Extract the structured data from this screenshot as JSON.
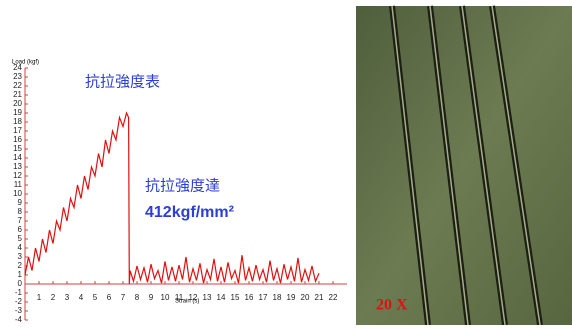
{
  "chart_data": {
    "type": "line",
    "x_label": "Strain (s)",
    "y_label": "Load (kgf)",
    "annotations": [
      "抗拉強度表",
      "抗拉強度達",
      "412kgf/mm²"
    ],
    "xlim": [
      0,
      23
    ],
    "ylim": [
      -4,
      24
    ],
    "xticks": [
      1,
      2,
      3,
      4,
      5,
      6,
      7,
      8,
      9,
      10,
      11,
      12,
      13,
      14,
      15,
      16,
      17,
      18,
      19,
      20,
      21,
      22
    ],
    "yticks": [
      -4,
      -3,
      -2,
      -1,
      0,
      1,
      2,
      3,
      4,
      5,
      6,
      7,
      8,
      9,
      10,
      11,
      12,
      13,
      14,
      15,
      16,
      17,
      18,
      19,
      20,
      21,
      22,
      23,
      24
    ],
    "series": [
      {
        "color": "#e01010",
        "x": [
          0,
          0.25,
          0.5,
          0.75,
          1,
          1.25,
          1.5,
          1.75,
          2,
          2.25,
          2.5,
          2.75,
          3,
          3.25,
          3.5,
          3.75,
          4,
          4.25,
          4.5,
          4.75,
          5,
          5.25,
          5.5,
          5.75,
          6,
          6.25,
          6.5,
          6.75,
          7,
          7.25,
          7.4,
          7.45,
          7.5,
          7.75,
          8,
          8.25,
          8.5,
          8.75,
          9,
          9.25,
          9.5,
          9.75,
          10,
          10.25,
          10.5,
          10.75,
          11,
          11.25,
          11.5,
          11.75,
          12,
          12.25,
          12.5,
          12.75,
          13,
          13.25,
          13.5,
          13.75,
          14,
          14.25,
          14.5,
          14.75,
          15,
          15.25,
          15.5,
          15.75,
          16,
          16.25,
          16.5,
          16.75,
          17,
          17.25,
          17.5,
          17.75,
          18,
          18.25,
          18.5,
          18.75,
          19,
          19.25,
          19.5,
          19.75,
          20,
          20.25,
          20.5,
          20.75,
          21
        ],
        "values": [
          1,
          3,
          1.5,
          4,
          2.5,
          5,
          3.5,
          6,
          4.5,
          7,
          6,
          8.5,
          7,
          9.5,
          8.5,
          11,
          9.5,
          12,
          10.5,
          13,
          12,
          14.5,
          13,
          16,
          14.5,
          17,
          16,
          18.5,
          17.5,
          19,
          18.5,
          0,
          1.5,
          0.3,
          2,
          0.5,
          1.8,
          0.2,
          2.2,
          0.6,
          1.5,
          0.1,
          2.5,
          0.4,
          1.9,
          0.3,
          2.1,
          0.5,
          3,
          0.2,
          1.7,
          0.4,
          2.3,
          0.1,
          1.6,
          0.5,
          2.8,
          0.3,
          1.9,
          0.2,
          2.4,
          0.6,
          1.5,
          0.1,
          3.2,
          0.4,
          1.8,
          0.3,
          2.1,
          0.5,
          1.6,
          0.2,
          2.6,
          0.4,
          1.7,
          0.1,
          2.2,
          0.5,
          1.9,
          0.3,
          2.9,
          0.2,
          1.6,
          0.4,
          2,
          0.3,
          1.2
        ]
      }
    ]
  },
  "photo": {
    "label": "20 X"
  }
}
